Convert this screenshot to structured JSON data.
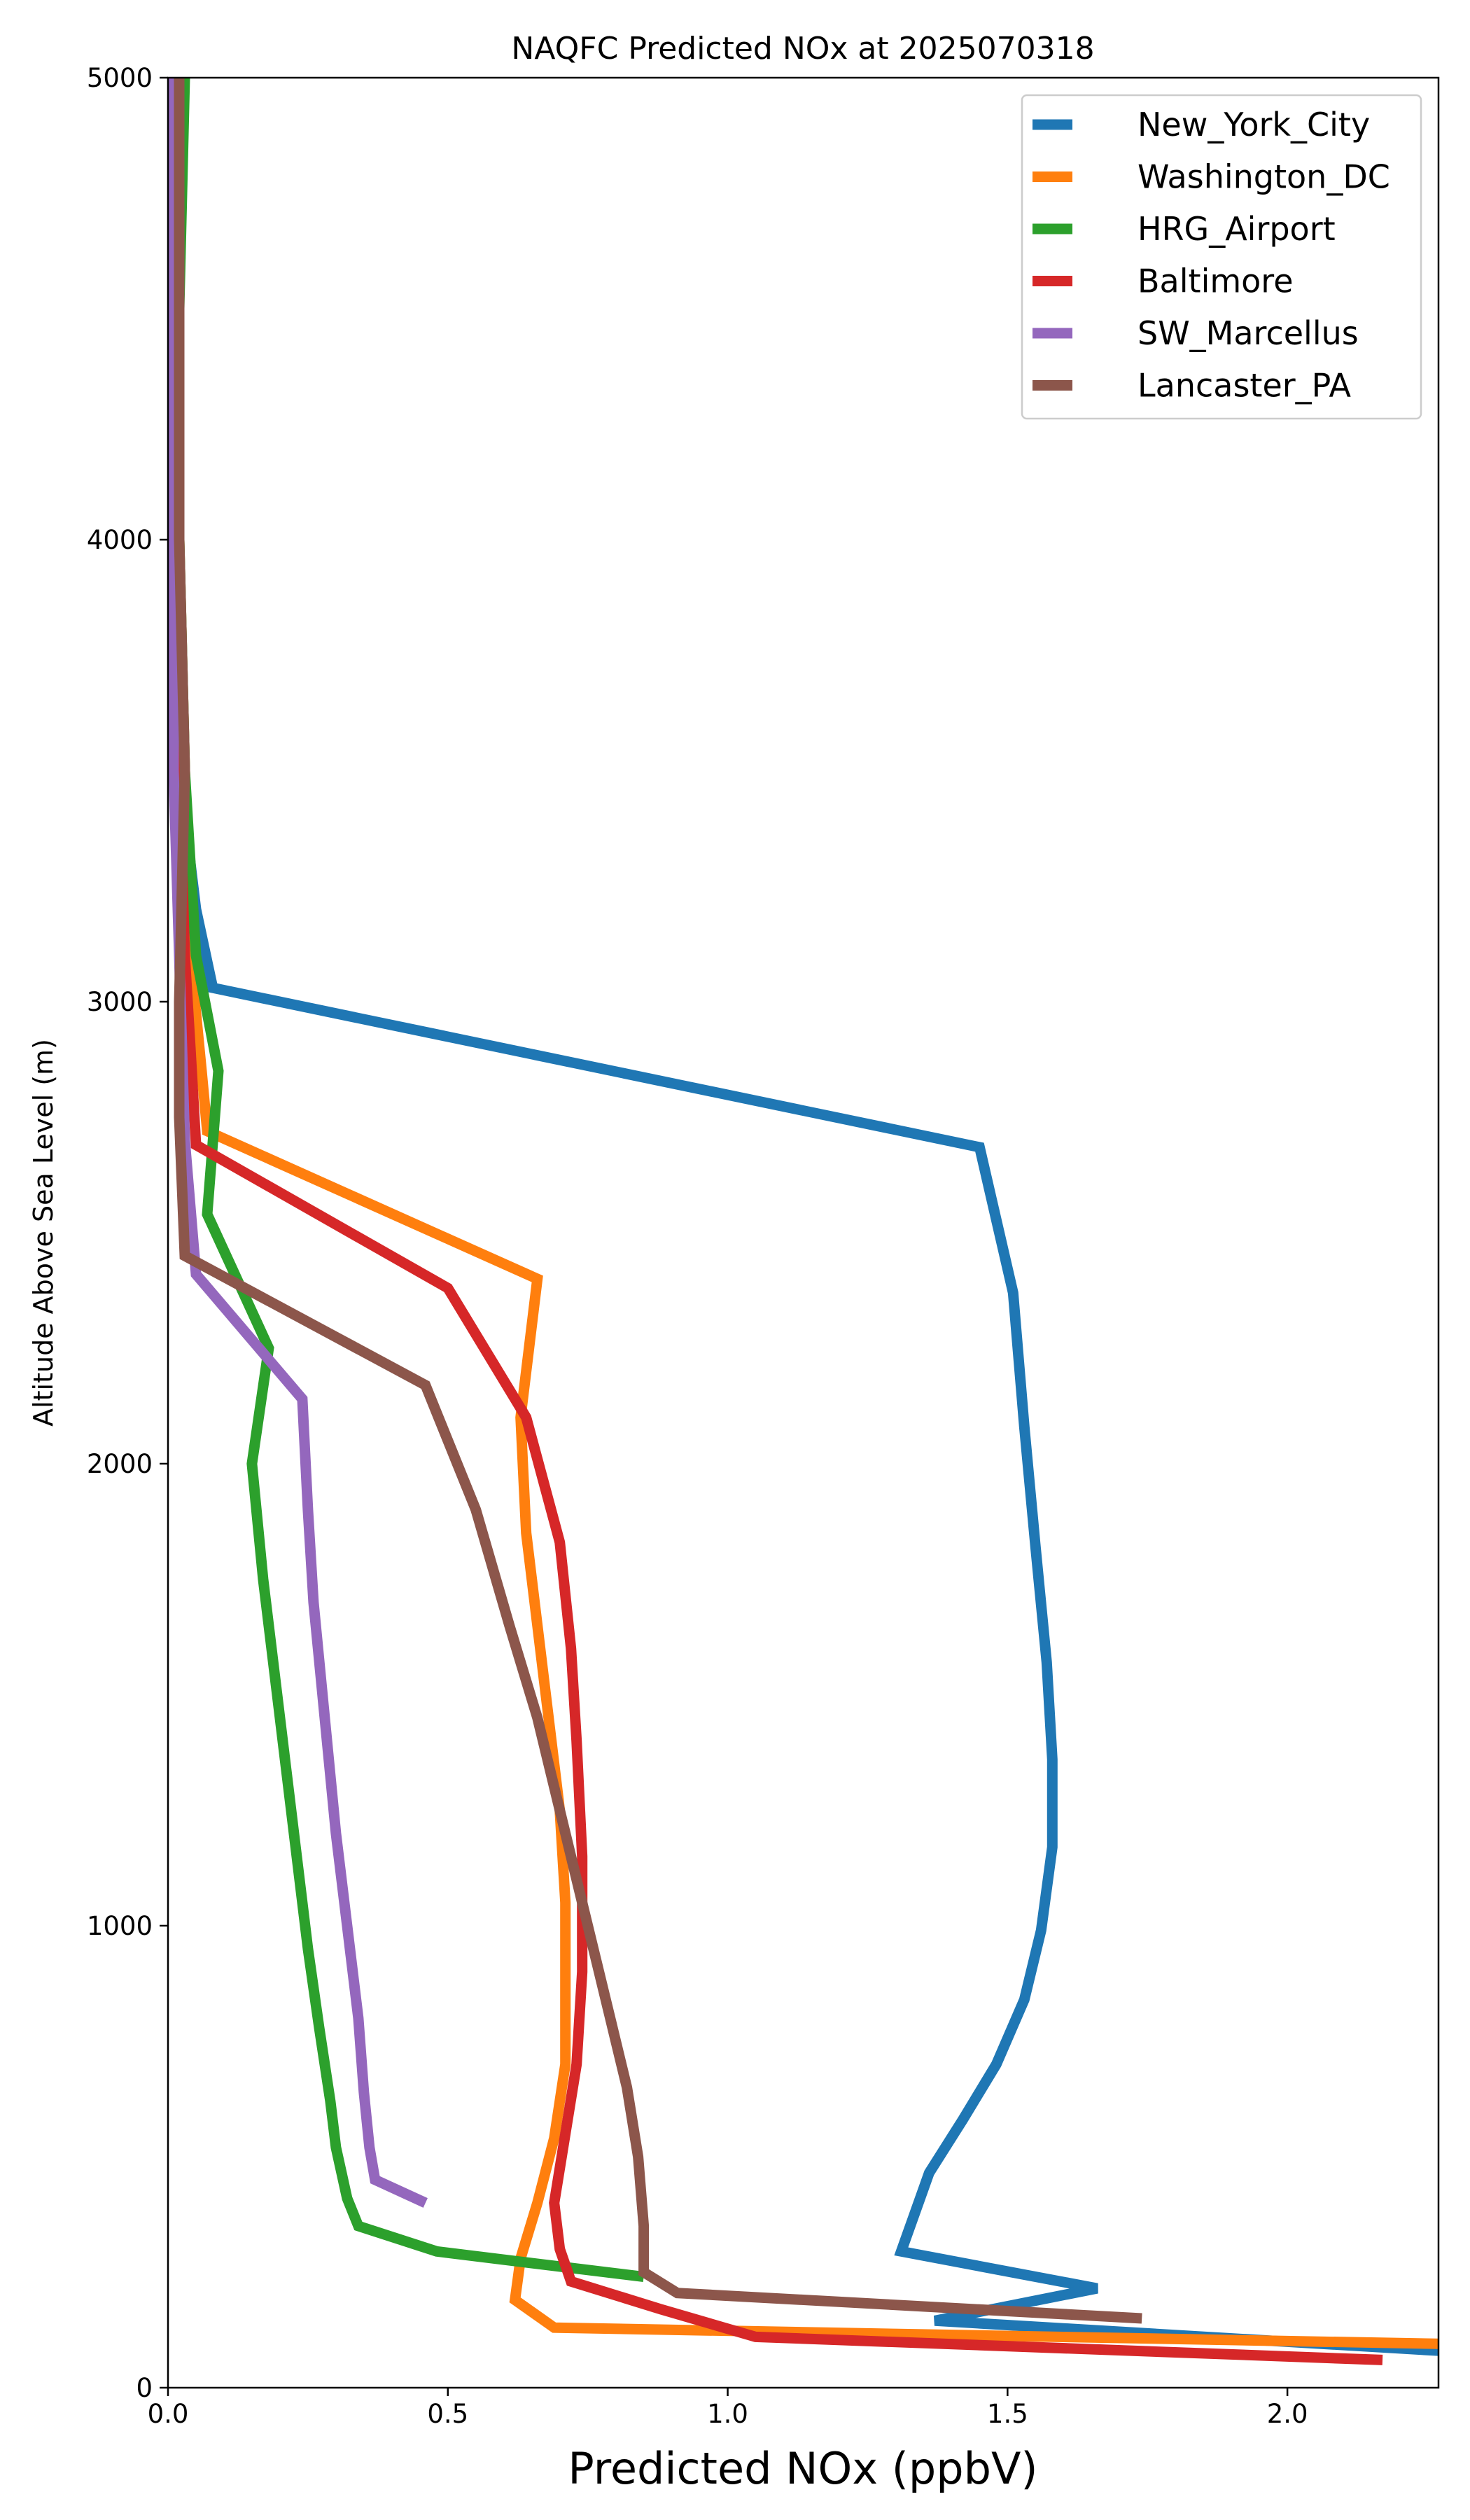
{
  "chart_data": {
    "type": "line",
    "title": "NAQFC Predicted NOx at 2025070318",
    "xlabel": "Predicted NOx (ppbV)",
    "ylabel": "Altitude Above Sea Level (m)",
    "xlim": [
      0,
      2.27
    ],
    "ylim": [
      0,
      5000
    ],
    "xticks": [
      0,
      0.5,
      1.0,
      1.5,
      2.0
    ],
    "xtick_labels": [
      "0.0",
      "0.5",
      "1.0",
      "1.5",
      "2.0"
    ],
    "yticks": [
      0,
      1000,
      2000,
      3000,
      4000,
      5000
    ],
    "ytick_labels": [
      "0",
      "1000",
      "2000",
      "3000",
      "4000",
      "5000"
    ],
    "grid": false,
    "legend_position": "top-right",
    "series": [
      {
        "name": "New_York_City",
        "color": "#1f77b4",
        "points": [
          [
            2.27,
            80
          ],
          [
            1.37,
            145
          ],
          [
            1.66,
            215
          ],
          [
            1.31,
            295
          ],
          [
            1.36,
            465
          ],
          [
            1.42,
            580
          ],
          [
            1.48,
            700
          ],
          [
            1.53,
            840
          ],
          [
            1.56,
            990
          ],
          [
            1.58,
            1170
          ],
          [
            1.58,
            1360
          ],
          [
            1.57,
            1570
          ],
          [
            1.55,
            1820
          ],
          [
            1.53,
            2080
          ],
          [
            1.51,
            2370
          ],
          [
            1.45,
            2685
          ],
          [
            0.08,
            3030
          ],
          [
            0.05,
            3200
          ],
          [
            0.03,
            3400
          ],
          [
            0.02,
            3700
          ],
          [
            0.02,
            4000
          ],
          [
            0.02,
            4500
          ],
          [
            0.02,
            5000
          ]
        ]
      },
      {
        "name": "Washington_DC",
        "color": "#ff7f0e",
        "points": [
          [
            2.27,
            95
          ],
          [
            0.69,
            130
          ],
          [
            0.62,
            190
          ],
          [
            0.63,
            280
          ],
          [
            0.66,
            400
          ],
          [
            0.69,
            540
          ],
          [
            0.71,
            700
          ],
          [
            0.71,
            880
          ],
          [
            0.71,
            1050
          ],
          [
            0.7,
            1250
          ],
          [
            0.68,
            1450
          ],
          [
            0.66,
            1650
          ],
          [
            0.64,
            1850
          ],
          [
            0.63,
            2100
          ],
          [
            0.66,
            2400
          ],
          [
            0.07,
            2720
          ],
          [
            0.06,
            2850
          ],
          [
            0.04,
            3100
          ],
          [
            0.03,
            3500
          ],
          [
            0.02,
            4000
          ],
          [
            0.02,
            5000
          ]
        ]
      },
      {
        "name": "HRG_Airport",
        "color": "#2ca02c",
        "points": [
          [
            0.85,
            240
          ],
          [
            0.48,
            295
          ],
          [
            0.34,
            350
          ],
          [
            0.32,
            410
          ],
          [
            0.3,
            520
          ],
          [
            0.29,
            620
          ],
          [
            0.27,
            780
          ],
          [
            0.25,
            950
          ],
          [
            0.23,
            1150
          ],
          [
            0.21,
            1350
          ],
          [
            0.19,
            1550
          ],
          [
            0.17,
            1750
          ],
          [
            0.15,
            2000
          ],
          [
            0.18,
            2250
          ],
          [
            0.07,
            2540
          ],
          [
            0.09,
            2850
          ],
          [
            0.05,
            3100
          ],
          [
            0.03,
            3500
          ],
          [
            0.02,
            4000
          ],
          [
            0.02,
            4500
          ],
          [
            0.03,
            5000
          ]
        ]
      },
      {
        "name": "Baltimore",
        "color": "#d62728",
        "points": [
          [
            2.17,
            60
          ],
          [
            1.05,
            110
          ],
          [
            0.88,
            170
          ],
          [
            0.72,
            230
          ],
          [
            0.7,
            300
          ],
          [
            0.69,
            400
          ],
          [
            0.71,
            550
          ],
          [
            0.73,
            700
          ],
          [
            0.74,
            900
          ],
          [
            0.74,
            1150
          ],
          [
            0.73,
            1400
          ],
          [
            0.72,
            1600
          ],
          [
            0.7,
            1830
          ],
          [
            0.64,
            2100
          ],
          [
            0.5,
            2380
          ],
          [
            0.05,
            2690
          ],
          [
            0.04,
            2900
          ],
          [
            0.03,
            3100
          ],
          [
            0.02,
            3500
          ],
          [
            0.02,
            4000
          ],
          [
            0.02,
            5000
          ]
        ]
      },
      {
        "name": "SW_Marcellus",
        "color": "#9467bd",
        "points": [
          [
            0.46,
            400
          ],
          [
            0.37,
            450
          ],
          [
            0.36,
            520
          ],
          [
            0.35,
            640
          ],
          [
            0.34,
            800
          ],
          [
            0.32,
            1000
          ],
          [
            0.3,
            1200
          ],
          [
            0.28,
            1450
          ],
          [
            0.26,
            1700
          ],
          [
            0.25,
            1900
          ],
          [
            0.24,
            2140
          ],
          [
            0.05,
            2410
          ],
          [
            0.03,
            2700
          ],
          [
            0.02,
            3100
          ],
          [
            0.01,
            3500
          ],
          [
            0.01,
            4000
          ],
          [
            0.01,
            5000
          ]
        ]
      },
      {
        "name": "Lancaster_PA",
        "color": "#8c564b",
        "points": [
          [
            1.74,
            150
          ],
          [
            0.91,
            205
          ],
          [
            0.85,
            250
          ],
          [
            0.85,
            350
          ],
          [
            0.84,
            500
          ],
          [
            0.82,
            650
          ],
          [
            0.79,
            800
          ],
          [
            0.75,
            1000
          ],
          [
            0.71,
            1200
          ],
          [
            0.66,
            1450
          ],
          [
            0.61,
            1650
          ],
          [
            0.55,
            1900
          ],
          [
            0.46,
            2170
          ],
          [
            0.03,
            2450
          ],
          [
            0.02,
            2750
          ],
          [
            0.02,
            3000
          ],
          [
            0.03,
            3500
          ],
          [
            0.02,
            4000
          ],
          [
            0.02,
            4500
          ],
          [
            0.02,
            5000
          ]
        ]
      }
    ]
  }
}
